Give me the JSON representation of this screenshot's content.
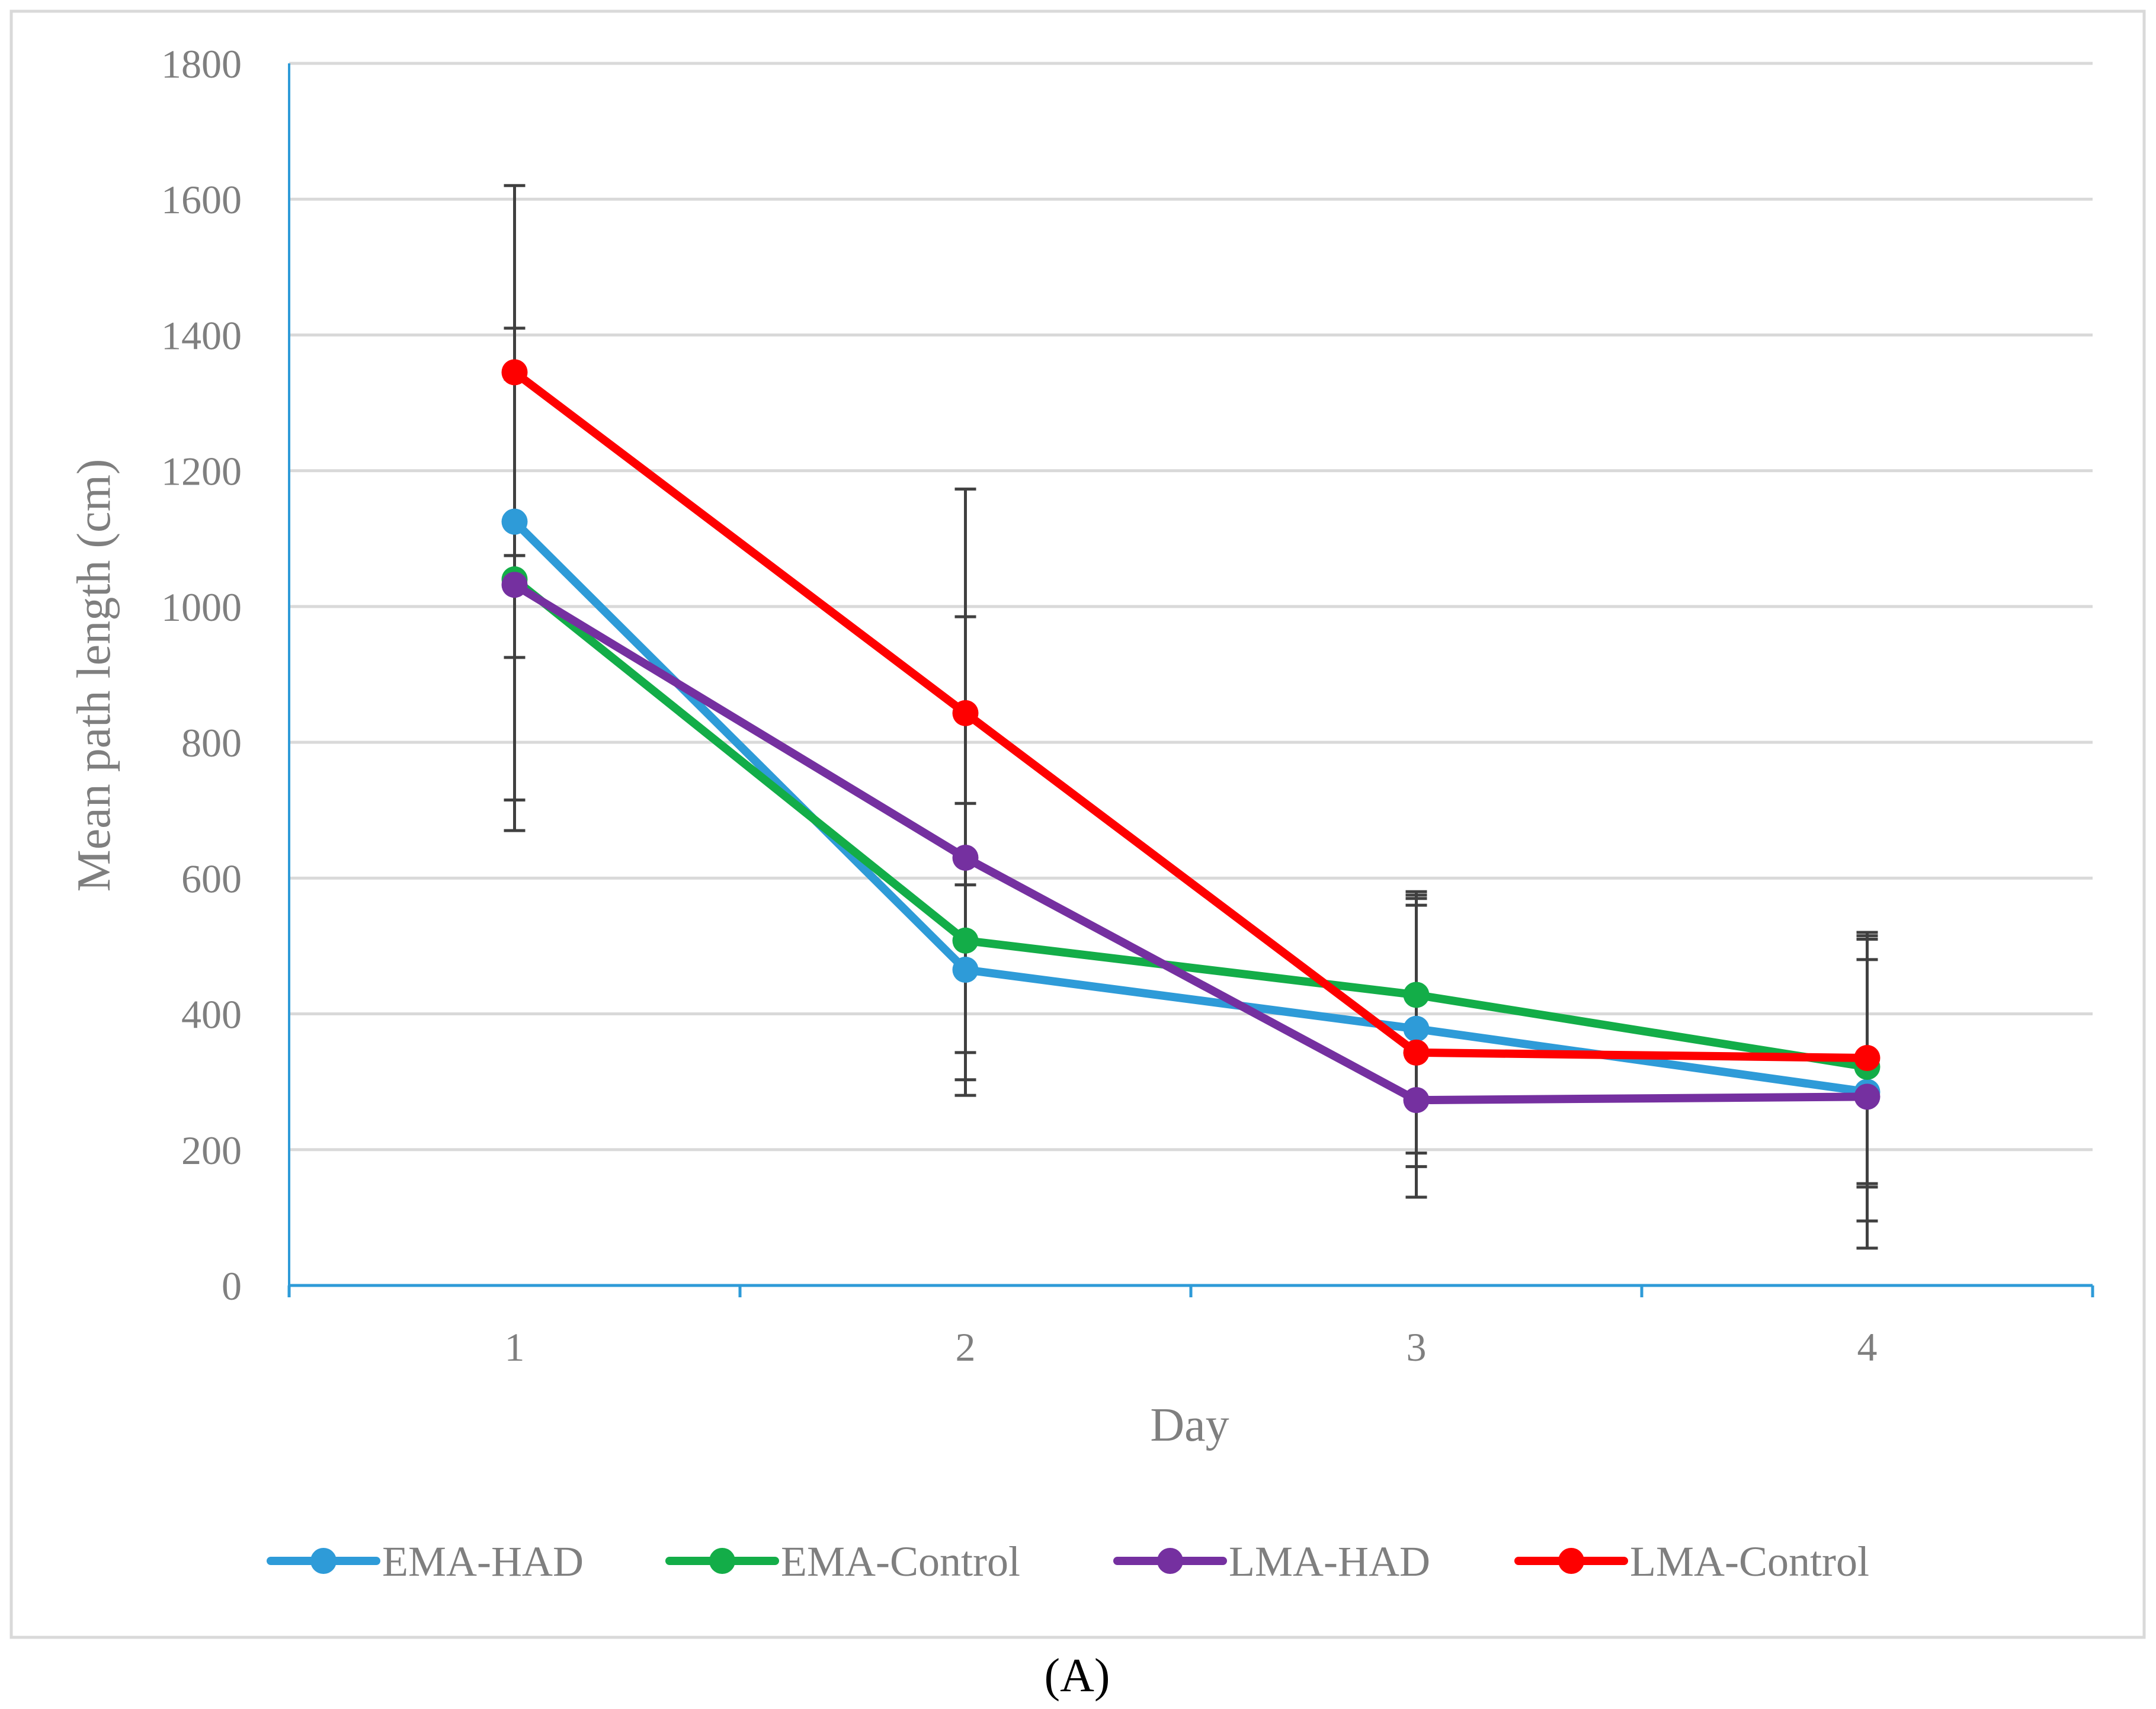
{
  "chart_data": {
    "type": "line",
    "title": "",
    "xlabel": "Day",
    "ylabel": "Mean path length (cm)",
    "categories": [
      "1",
      "2",
      "3",
      "4"
    ],
    "ylim": [
      0,
      1800
    ],
    "yticks": [
      "0",
      "200",
      "400",
      "600",
      "800",
      "1000",
      "1200",
      "1400",
      "1600",
      "1800"
    ],
    "grid": true,
    "legend_position": "bottom",
    "series": [
      {
        "name": "EMA-HAD",
        "color": "#2e9bd8",
        "values": [
          1125,
          465,
          378,
          285
        ],
        "error_upper": [
          1410,
          985,
          580,
          510
        ],
        "error_lower": [
          715,
          280,
          175,
          55
        ]
      },
      {
        "name": "EMA-Control",
        "color": "#13ad48",
        "values": [
          1040,
          508,
          428,
          322
        ],
        "error_upper": [
          1075,
          710,
          570,
          520
        ],
        "error_lower": [
          925,
          303,
          195,
          150
        ]
      },
      {
        "name": "LMA-HAD",
        "color": "#7530a0",
        "values": [
          1032,
          630,
          273,
          278
        ],
        "error_upper": [
          1335,
          590,
          560,
          480
        ],
        "error_lower": [
          670,
          343,
          130,
          95
        ]
      },
      {
        "name": "LMA-Control",
        "color": "#fe0000",
        "values": [
          1345,
          843,
          343,
          335
        ],
        "error_upper": [
          1620,
          1173,
          575,
          515
        ],
        "error_lower": [
          1075,
          515,
          130,
          145
        ]
      }
    ],
    "caption": "(A)"
  }
}
